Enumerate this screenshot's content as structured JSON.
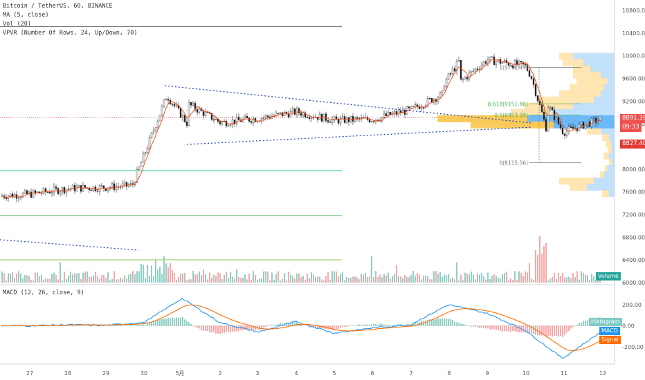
{
  "legend": {
    "symbol": "Bitcoin / TetherUS, 60, BINANCE",
    "ma": "MA (5, close)",
    "vol": "Vol (20)",
    "vpvr": "VPVR (Number Of Rows, 24, Up/Down, 70)",
    "macd": "MACD (12, 26, close, 9)"
  },
  "price_axis": {
    "ticks": [
      "10800.00",
      "10400.00",
      "10000.00",
      "9600.00",
      "9200.00",
      "8800.00",
      "8400.00",
      "8000.00",
      "7600.00",
      "7200.00",
      "6800.00",
      "6400.00",
      "6000.00"
    ],
    "tags": {
      "last": "8891.39",
      "countdown": "09:33",
      "marker": "8827.40"
    }
  },
  "macd_axis": {
    "ticks": [
      "200.00",
      "0.00",
      "-200.00"
    ],
    "tags": {
      "histogram": "Histogram",
      "macd": "MACD",
      "signal": "Signal"
    }
  },
  "volume_tag": "Volume",
  "time_axis": [
    "27",
    "28",
    "29",
    "30",
    "5月",
    "2",
    "3",
    "4",
    "5",
    "6",
    "7",
    "8",
    "9",
    "10",
    "11",
    "12"
  ],
  "fib": {
    "top": "1(9792.47)",
    "l618": "0.618(9151.86)",
    "l5": "0.5(8953.99)",
    "zero": "0(8115.56)"
  },
  "colors": {
    "up": "#26a69a",
    "down": "#ef5350",
    "up_vol": "#8fcfc6",
    "down_vol": "#f7a9a7",
    "ma": "#f4511e",
    "trend": "#1e40c8",
    "macd": "#2196f3",
    "signal": "#ff6d00",
    "vpvr_up": "#2196f3",
    "vpvr_down": "#ffb300",
    "hline_red": "#ef5350",
    "hline_green": "#4caf50"
  },
  "chart_data": {
    "type": "line",
    "x": [
      "27",
      "28",
      "29",
      "30",
      "5月",
      "2",
      "3",
      "4",
      "5",
      "6",
      "7",
      "8",
      "9",
      "10",
      "11",
      "12"
    ],
    "series": [
      {
        "name": "Bitcoin / TetherUS",
        "values": [
          7560,
          7660,
          7680,
          7730,
          9200,
          8820,
          8900,
          9010,
          8860,
          8880,
          9050,
          9380,
          9930,
          9820,
          8650,
          8891
        ]
      },
      {
        "name": "MACD",
        "values": [
          0,
          10,
          5,
          30,
          260,
          30,
          -60,
          40,
          -70,
          -20,
          10,
          200,
          120,
          -40,
          -310,
          -60
        ]
      }
    ],
    "ylim": [
      6000,
      10800
    ]
  }
}
